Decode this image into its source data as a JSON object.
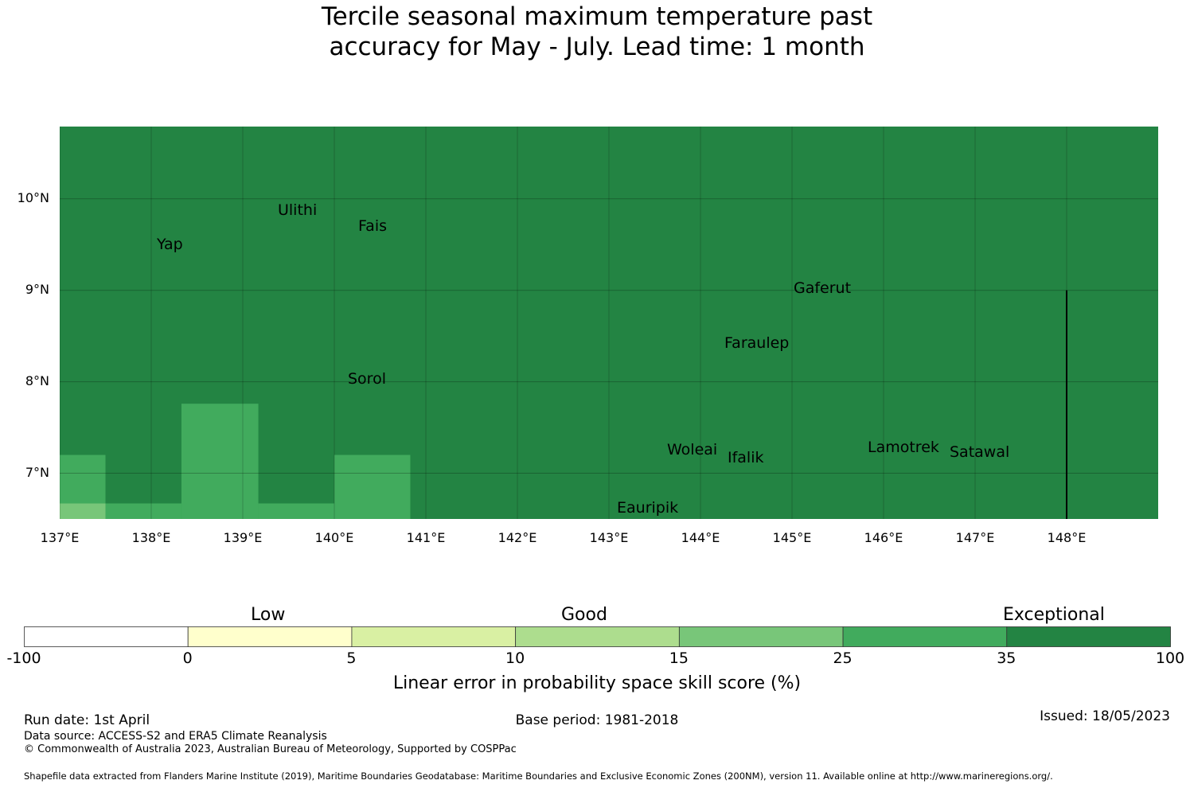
{
  "title_line1": "Tercile seasonal maximum temperature past",
  "title_line2": "accuracy for May - July. Lead time: 1 month",
  "chart_data": {
    "type": "heatmap",
    "lon_range": [
      137,
      149
    ],
    "lat_range": [
      6.5,
      10.79
    ],
    "lon_ticks": [
      "137°E",
      "138°E",
      "139°E",
      "140°E",
      "141°E",
      "142°E",
      "143°E",
      "144°E",
      "145°E",
      "146°E",
      "147°E",
      "148°E"
    ],
    "lat_ticks": [
      "10°N",
      "9°N",
      "8°N",
      "7°N"
    ],
    "default_category": "35-100",
    "cells": [
      {
        "lon": [
          137,
          137.5
        ],
        "lat": [
          6.67,
          7.2
        ],
        "category": "25-35"
      },
      {
        "lon": [
          137,
          137.5
        ],
        "lat": [
          6.5,
          6.67
        ],
        "category": "15-25"
      },
      {
        "lon": [
          137.5,
          138.33
        ],
        "lat": [
          6.5,
          6.67
        ],
        "category": "25-35"
      },
      {
        "lon": [
          138.33,
          139.17
        ],
        "lat": [
          6.5,
          7.76
        ],
        "category": "25-35"
      },
      {
        "lon": [
          139.17,
          140
        ],
        "lat": [
          6.5,
          6.67
        ],
        "category": "25-35"
      },
      {
        "lon": [
          140,
          140.83
        ],
        "lat": [
          6.5,
          7.2
        ],
        "category": "25-35"
      }
    ],
    "places": [
      {
        "name": "Ulithi"
      },
      {
        "name": "Fais"
      },
      {
        "name": "Yap"
      },
      {
        "name": "Gaferut"
      },
      {
        "name": "Faraulep"
      },
      {
        "name": "Sorol"
      },
      {
        "name": "Woleai"
      },
      {
        "name": "Ifalik"
      },
      {
        "name": "Lamotrek"
      },
      {
        "name": "Satawal"
      },
      {
        "name": "Eauripik"
      }
    ],
    "colorbar": {
      "label": "Linear error in probability space skill score (%)",
      "category_labels": [
        "Low",
        "Good",
        "Exceptional"
      ],
      "ticks": [
        "-100",
        "0",
        "5",
        "10",
        "15",
        "25",
        "35",
        "100"
      ],
      "colors": [
        "#ffffff",
        "#ffffcc",
        "#d9f0a3",
        "#addd8e",
        "#78c679",
        "#41ab5d",
        "#238443"
      ]
    }
  },
  "colors": {
    "15-25": "#78c679",
    "25-35": "#41ab5d",
    "35-100": "#238443"
  },
  "footer": {
    "run_date": "Run date: 1st April",
    "base_period": "Base period: 1981-2018",
    "issued": "Issued: 18/05/2023",
    "data_source": "Data source: ACCESS-S2 and ERA5 Climate Reanalysis",
    "copyright": "© Commonwealth of Australia 2023, Australian Bureau of Meteorology, Supported by COSPPac",
    "shapefile": "Shapefile data extracted from Flanders Marine Institute (2019), Maritime Boundaries Geodatabase: Maritime Boundaries and Exclusive Economic Zones (200NM), version 11. Available online at http://www.marineregions.org/."
  }
}
